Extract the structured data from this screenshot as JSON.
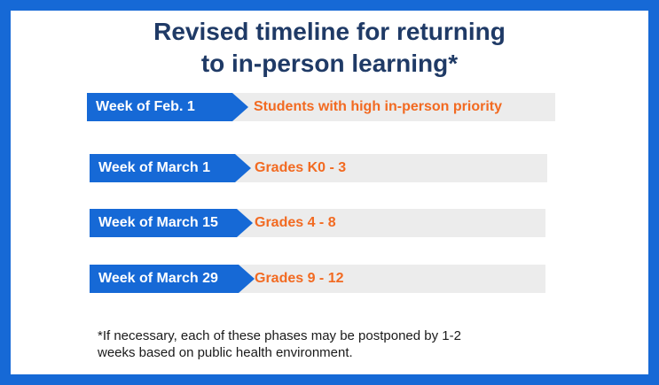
{
  "title": {
    "line1": "Revised timeline for returning",
    "line2": "to in-person learning*"
  },
  "timeline": [
    {
      "week": "Week of Feb. 1",
      "group": "Students with high in-person priority"
    },
    {
      "week": "Week of March 1",
      "group": "Grades K0 - 3"
    },
    {
      "week": "Week of March 15",
      "group": "Grades 4 - 8"
    },
    {
      "week": "Week of March 29",
      "group": "Grades 9 - 12"
    }
  ],
  "footnote": "*If necessary, each of these phases may be postponed by 1-2 weeks based on public health environment.",
  "colors": {
    "frame": "#1669d6",
    "title": "#1f3a66",
    "week_tag": "#1669d6",
    "phase_text": "#f26a21",
    "phase_bar": "#ececec"
  }
}
